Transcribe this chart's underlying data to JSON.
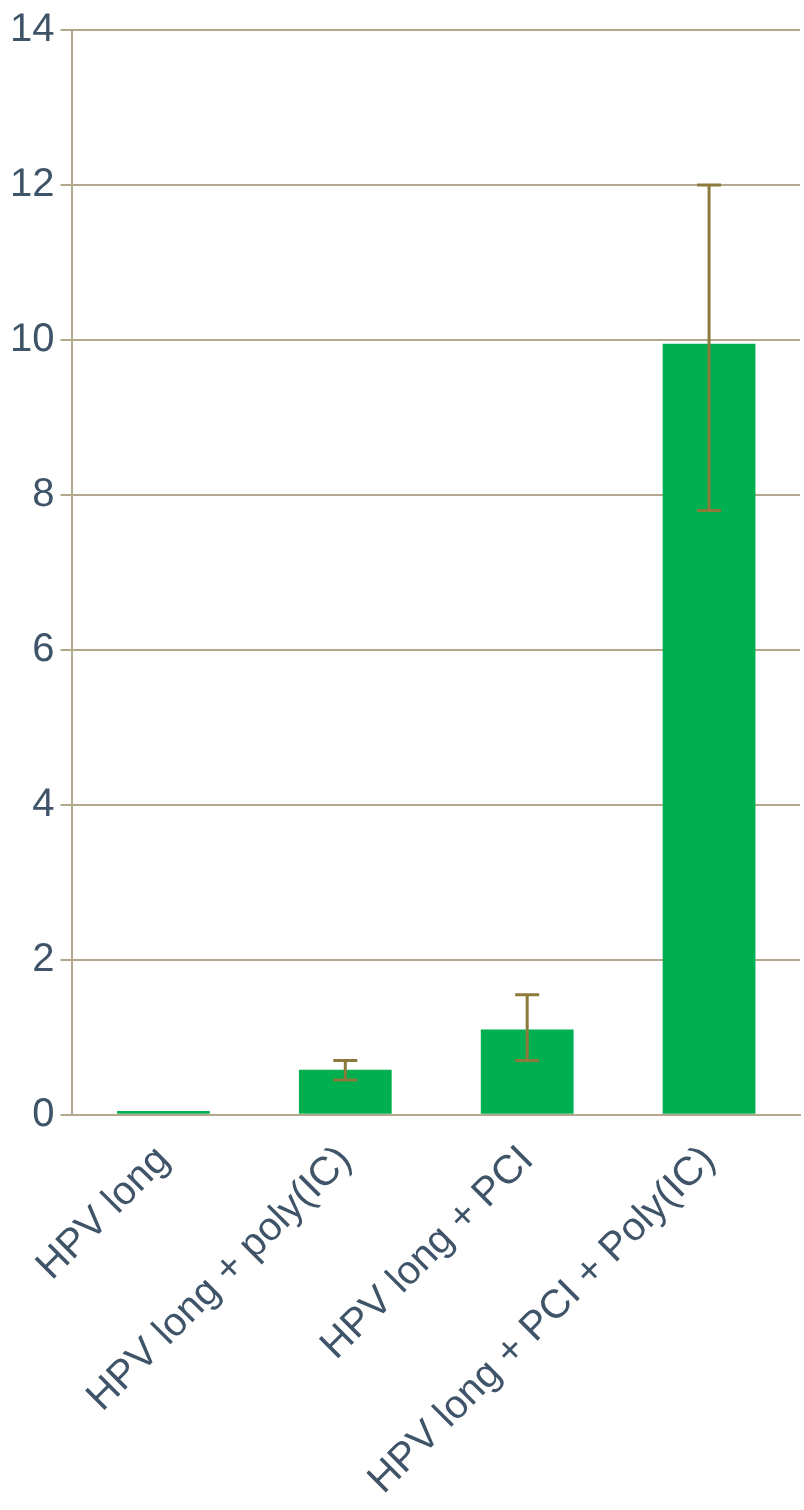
{
  "chart_data": {
    "type": "bar",
    "categories": [
      "HPV long",
      "HPV long + poly(IC)",
      "HPV long + PCI",
      "HPV long + PCI + Poly(IC)"
    ],
    "values": [
      0.05,
      0.58,
      1.1,
      9.95
    ],
    "errors": [
      null,
      [
        0.45,
        0.7
      ],
      [
        0.7,
        1.55
      ],
      [
        7.8,
        12.0
      ]
    ],
    "color": "#00b050",
    "ylim": [
      0,
      14
    ],
    "yticks": [
      0,
      2,
      4,
      6,
      8,
      10,
      12,
      14
    ],
    "grid": "y",
    "legend": false
  }
}
